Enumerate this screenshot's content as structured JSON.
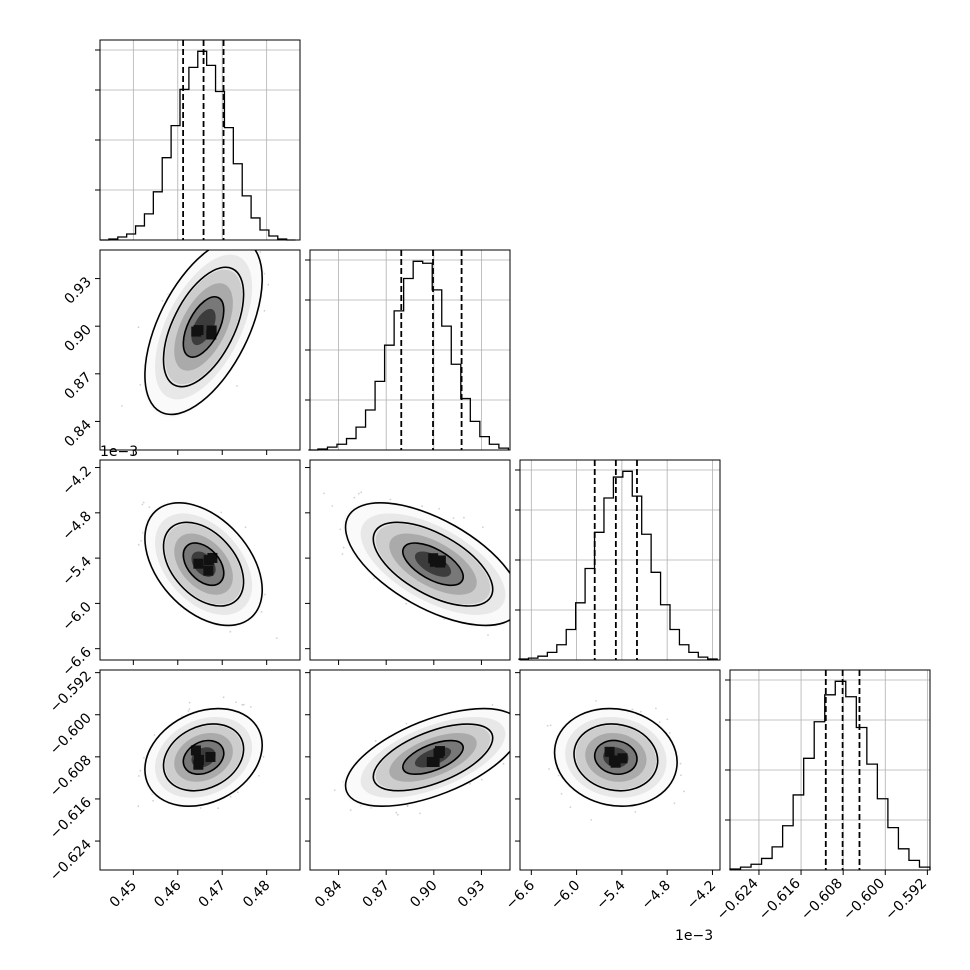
{
  "chart_data": {
    "type": "corner",
    "title": "",
    "colors": {
      "line": "#000000",
      "grid": "#b0b0b0",
      "scatter": "#9a9a9a",
      "background": "#ffffff"
    },
    "grid": true,
    "parameters": [
      {
        "index": 0,
        "range": [
          0.4425,
          0.4875
        ],
        "ticks": [
          0.45,
          0.46,
          0.47,
          0.48
        ],
        "tick_labels": [
          "0.45",
          "0.46",
          "0.47",
          "0.48"
        ],
        "offset_label": "",
        "quantiles": [
          0.4612,
          0.4658,
          0.4703
        ]
      },
      {
        "index": 1,
        "range": [
          0.822,
          0.948
        ],
        "ticks": [
          0.84,
          0.87,
          0.9,
          0.93
        ],
        "tick_labels": [
          "0.84",
          "0.87",
          "0.90",
          "0.93"
        ],
        "offset_label": "",
        "quantiles": [
          0.8795,
          0.8995,
          0.9175
        ]
      },
      {
        "index": 2,
        "range": [
          -6.75,
          -4.1
        ],
        "ticks": [
          -6.6,
          -6.0,
          -5.4,
          -4.8,
          -4.2
        ],
        "tick_labels": [
          "−6.6",
          "−6.0",
          "−5.4",
          "−4.8",
          "−4.2"
        ],
        "offset_label": "1e−3",
        "quantiles": [
          -5.76,
          -5.48,
          -5.2
        ]
      },
      {
        "index": 3,
        "range": [
          -0.6295,
          -0.5915
        ],
        "ticks": [
          -0.624,
          -0.616,
          -0.608,
          -0.6,
          -0.592
        ],
        "tick_labels": [
          "−0.624",
          "−0.616",
          "−0.608",
          "−0.600",
          "−0.592"
        ],
        "offset_label": "",
        "quantiles": [
          -0.6113,
          -0.6081,
          -0.6049
        ]
      }
    ],
    "histograms": [
      {
        "param": 0,
        "bins": [
          0.4435,
          0.4455,
          0.4475,
          0.4495,
          0.4515,
          0.4535,
          0.4555,
          0.4575,
          0.4595,
          0.4615,
          0.4635,
          0.4655,
          0.4675,
          0.4695,
          0.4715,
          0.4735,
          0.4755,
          0.4775,
          0.4795,
          0.4815,
          0.4835,
          0.4855
        ],
        "counts": [
          0,
          0.5,
          1.5,
          3,
          7,
          13,
          24,
          41,
          57,
          75,
          86,
          94,
          87,
          74,
          56,
          38,
          22,
          11,
          5,
          2,
          0.5,
          0
        ]
      },
      {
        "param": 1,
        "bins": [
          0.824,
          0.83,
          0.836,
          0.842,
          0.848,
          0.854,
          0.86,
          0.866,
          0.872,
          0.878,
          0.884,
          0.89,
          0.896,
          0.902,
          0.908,
          0.914,
          0.92,
          0.926,
          0.932,
          0.938,
          0.944
        ],
        "counts": [
          0,
          0.5,
          1.5,
          3,
          6,
          12,
          21,
          36,
          55,
          73,
          90,
          99,
          98,
          84,
          65,
          45,
          27,
          15,
          7,
          3,
          1
        ]
      },
      {
        "param": 2,
        "bins": [
          -6.7,
          -6.575,
          -6.45,
          -6.325,
          -6.2,
          -6.075,
          -5.95,
          -5.825,
          -5.7,
          -5.575,
          -5.45,
          -5.325,
          -5.2,
          -5.075,
          -4.95,
          -4.825,
          -4.7,
          -4.575,
          -4.45,
          -4.325,
          -4.2
        ],
        "counts": [
          0.5,
          1,
          2,
          4,
          8,
          16,
          30,
          48,
          67,
          85,
          96,
          99,
          86,
          66,
          46,
          29,
          16,
          8,
          4,
          1.5,
          0.5
        ]
      },
      {
        "param": 3,
        "bins": [
          -0.6285,
          -0.6265,
          -0.6245,
          -0.6225,
          -0.6205,
          -0.6185,
          -0.6165,
          -0.6145,
          -0.6125,
          -0.6105,
          -0.6085,
          -0.6065,
          -0.6045,
          -0.6025,
          -0.6005,
          -0.5985,
          -0.5965,
          -0.5945,
          -0.5925
        ],
        "counts": [
          0.5,
          1.5,
          3,
          6,
          12,
          23,
          39,
          58,
          77,
          91,
          98,
          90,
          74,
          55,
          37,
          22,
          11,
          5,
          1.5
        ]
      }
    ],
    "pairs": [
      {
        "x": 0,
        "y": 1,
        "correlation": 0.55
      },
      {
        "x": 0,
        "y": 2,
        "correlation": -0.42
      },
      {
        "x": 1,
        "y": 2,
        "correlation": -0.6
      },
      {
        "x": 0,
        "y": 3,
        "correlation": 0.25
      },
      {
        "x": 1,
        "y": 3,
        "correlation": 0.58
      },
      {
        "x": 2,
        "y": 3,
        "correlation": -0.1
      }
    ],
    "contour_levels": [
      "39%",
      "86%",
      "99%"
    ]
  }
}
